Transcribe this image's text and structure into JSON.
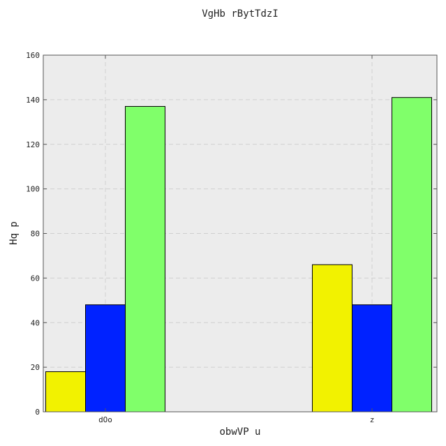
{
  "chart_data": {
    "type": "bar",
    "title": "VgHb rBytTdzI",
    "xlabel": "obwVP u",
    "ylabel": "Hq p",
    "categories": [
      "dOo",
      "z"
    ],
    "ylim": [
      0,
      160
    ],
    "yticks": [
      0,
      20,
      40,
      60,
      80,
      100,
      120,
      140,
      160
    ],
    "grid": true,
    "series": [
      {
        "color": "#f2f200",
        "values": [
          18,
          66
        ]
      },
      {
        "color": "#0022ff",
        "values": [
          48,
          48
        ]
      },
      {
        "color": "#80ff6a",
        "values": [
          137,
          141
        ]
      }
    ]
  }
}
